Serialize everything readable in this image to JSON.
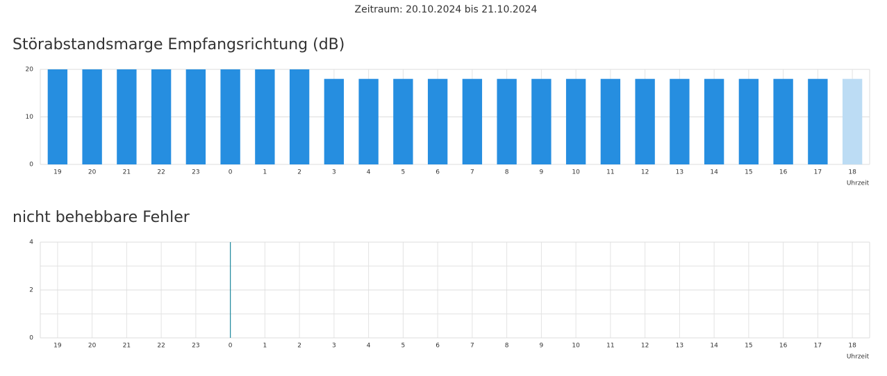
{
  "header": "Zeitraum: 20.10.2024 bis 21.10.2024",
  "chart_data": [
    {
      "type": "bar",
      "title": "Störabstandsmarge Empfangsrichtung (dB)",
      "x_label": "Uhrzeit",
      "categories": [
        "19",
        "20",
        "21",
        "22",
        "23",
        "0",
        "1",
        "2",
        "3",
        "4",
        "5",
        "6",
        "7",
        "8",
        "9",
        "10",
        "11",
        "12",
        "13",
        "14",
        "15",
        "16",
        "17",
        "18"
      ],
      "values": [
        20,
        20,
        20,
        20,
        20,
        20,
        20,
        20,
        18,
        18,
        18,
        18,
        18,
        18,
        18,
        18,
        18,
        18,
        18,
        18,
        18,
        18,
        18,
        18
      ],
      "bar_colors": [
        "#268ee0",
        "#268ee0",
        "#268ee0",
        "#268ee0",
        "#268ee0",
        "#268ee0",
        "#268ee0",
        "#268ee0",
        "#268ee0",
        "#268ee0",
        "#268ee0",
        "#268ee0",
        "#268ee0",
        "#268ee0",
        "#268ee0",
        "#268ee0",
        "#268ee0",
        "#268ee0",
        "#268ee0",
        "#268ee0",
        "#268ee0",
        "#268ee0",
        "#268ee0",
        "#bcdcf4"
      ],
      "ylim": [
        0,
        20
      ],
      "yticks": [
        0,
        10,
        20
      ],
      "grid": true
    },
    {
      "type": "bar",
      "title": "nicht behebbare Fehler",
      "x_label": "Uhrzeit",
      "categories": [
        "19",
        "20",
        "21",
        "22",
        "23",
        "0",
        "1",
        "2",
        "3",
        "4",
        "5",
        "6",
        "7",
        "8",
        "9",
        "10",
        "11",
        "12",
        "13",
        "14",
        "15",
        "16",
        "17",
        "18"
      ],
      "values": [
        0,
        0,
        0,
        0,
        0,
        4,
        0,
        0,
        0,
        0,
        0,
        0,
        0,
        0,
        0,
        0,
        0,
        0,
        0,
        0,
        0,
        0,
        0,
        0
      ],
      "color": "#1f8a9e",
      "bar_style": "line",
      "ylim": [
        0,
        4
      ],
      "yticks": [
        0,
        2,
        4
      ],
      "grid": true,
      "minor_grid": true
    }
  ]
}
